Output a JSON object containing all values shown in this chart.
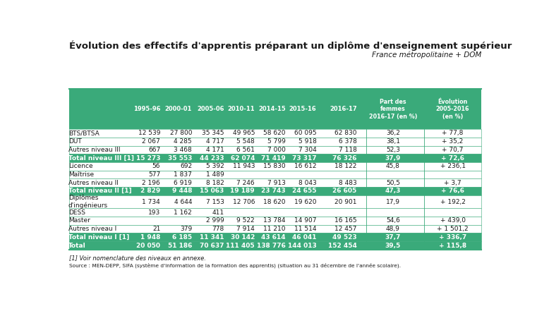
{
  "title": "Évolution des effectifs d'apprentis préparant un diplôme d'enseignement supérieur",
  "subtitle": "France métropolitaine + DOM",
  "col_headers": [
    "",
    "1995-96",
    "2000-01",
    "2005-06",
    "2010-11",
    "2014-15",
    "2015-16",
    "2016-17",
    "Part des\nfemmes\n2016-17 (en %)",
    "Évolution\n2005-2016\n(en %)"
  ],
  "rows": [
    {
      "label": "BTS/BTSA",
      "values": [
        "12 539",
        "27 800",
        "35 345",
        "49 965",
        "58 620",
        "60 095",
        "62 830",
        "36,2",
        "+ 77,8"
      ],
      "bold": false,
      "bg": "white"
    },
    {
      "label": "DUT",
      "values": [
        "2 067",
        "4 285",
        "4 717",
        "5 548",
        "5 799",
        "5 918",
        "6 378",
        "38,1",
        "+ 35,2"
      ],
      "bold": false,
      "bg": "white"
    },
    {
      "label": "Autres niveau III",
      "values": [
        "667",
        "3 468",
        "4 171",
        "6 561",
        "7 000",
        "7 304",
        "7 118",
        "52,3",
        "+ 70,7"
      ],
      "bold": false,
      "bg": "white"
    },
    {
      "label": "Total niveau III [1]",
      "values": [
        "15 273",
        "35 553",
        "44 233",
        "62 074",
        "71 419",
        "73 317",
        "76 326",
        "37,9",
        "+ 72,6"
      ],
      "bold": true,
      "bg": "green"
    },
    {
      "label": "Licence",
      "values": [
        "56",
        "692",
        "5 392",
        "11 943",
        "15 830",
        "16 612",
        "18 122",
        "45,8",
        "+ 236,1"
      ],
      "bold": false,
      "bg": "white"
    },
    {
      "label": "Maîtrise",
      "values": [
        "577",
        "1 837",
        "1 489",
        "",
        "",
        "",
        "",
        "",
        ""
      ],
      "bold": false,
      "bg": "white"
    },
    {
      "label": "Autres niveau II",
      "values": [
        "2 196",
        "6 919",
        "8 182",
        "7 246",
        "7 913",
        "8 043",
        "8 483",
        "50,5",
        "+ 3,7"
      ],
      "bold": false,
      "bg": "white"
    },
    {
      "label": "Total niveau II [1]",
      "values": [
        "2 829",
        "9 448",
        "15 063",
        "19 189",
        "23 743",
        "24 655",
        "26 605",
        "47,3",
        "+ 76,6"
      ],
      "bold": true,
      "bg": "green"
    },
    {
      "label": "Diplômes\nd'ingénieurs",
      "values": [
        "1 734",
        "4 644",
        "7 153",
        "12 706",
        "18 620",
        "19 620",
        "20 901",
        "17,9",
        "+ 192,2"
      ],
      "bold": false,
      "bg": "white"
    },
    {
      "label": "DESS",
      "values": [
        "193",
        "1 162",
        "411",
        "",
        "",
        "",
        "",
        "",
        ""
      ],
      "bold": false,
      "bg": "white"
    },
    {
      "label": "Master",
      "values": [
        "",
        "",
        "2 999",
        "9 522",
        "13 784",
        "14 907",
        "16 165",
        "54,6",
        "+ 439,0"
      ],
      "bold": false,
      "bg": "white"
    },
    {
      "label": "Autres niveau I",
      "values": [
        "21",
        "379",
        "778",
        "7 914",
        "11 210",
        "11 514",
        "12 457",
        "48,9",
        "+ 1 501,2"
      ],
      "bold": false,
      "bg": "white"
    },
    {
      "label": "Total niveau I [1]",
      "values": [
        "1 948",
        "6 185",
        "11 341",
        "30 142",
        "43 614",
        "46 041",
        "49 523",
        "37,7",
        "+ 336,7"
      ],
      "bold": true,
      "bg": "green"
    },
    {
      "label": "Total",
      "values": [
        "20 050",
        "51 186",
        "70 637",
        "111 405",
        "138 776",
        "144 013",
        "152 454",
        "39,5",
        "+ 115,8"
      ],
      "bold": true,
      "bg": "green"
    }
  ],
  "footer1": "[1] Voir nomenclature des niveaux en annexe.",
  "footer2": "Source : MEN-DEPP, SIFA (système d'information de la formation des apprentis) (situation au 31 décembre de l'année scolaire).",
  "green_color": "#3aaa7a",
  "text_black": "#1a1a1a"
}
